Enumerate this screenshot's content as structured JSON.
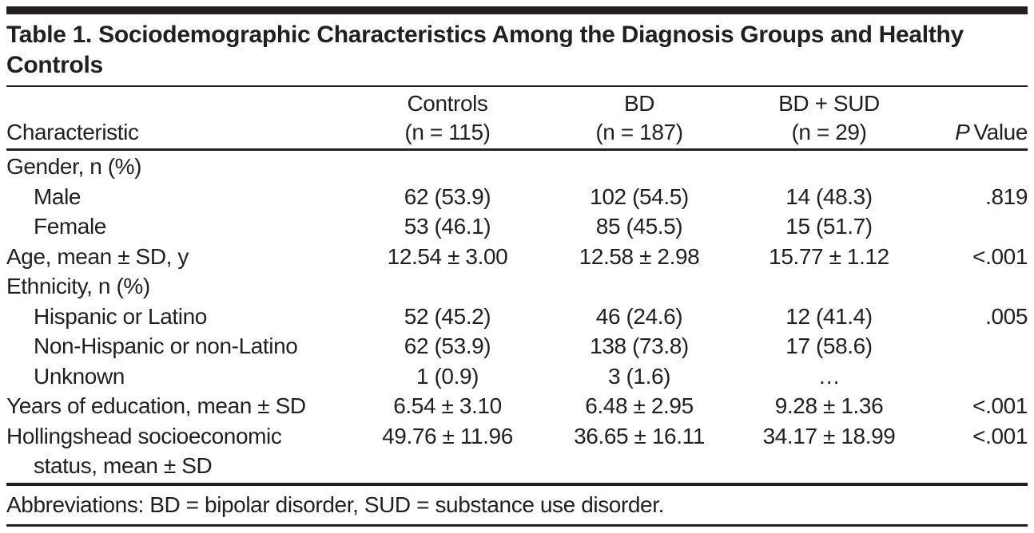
{
  "page": {
    "title": "Table 1. Sociodemographic Characteristics Among the Diagnosis Groups and Healthy Controls",
    "footnote": "Abbreviations: BD = bipolar disorder, SUD = substance use disorder."
  },
  "header": {
    "characteristic": "Characteristic",
    "groups": [
      {
        "name": "Controls",
        "n": "(n = 115)"
      },
      {
        "name": "BD",
        "n": "(n = 187)"
      },
      {
        "name": "BD + SUD",
        "n": "(n = 29)"
      }
    ],
    "p_italic": "P",
    "p_rest": "Value"
  },
  "rows": [
    {
      "label": "Gender, n (%)",
      "controls": "",
      "bd": "",
      "bdsud": "",
      "p": ""
    },
    {
      "label": "Male",
      "controls": "62 (53.9)",
      "bd": "102 (54.5)",
      "bdsud": "14 (48.3)",
      "p": ".819"
    },
    {
      "label": "Female",
      "controls": "53 (46.1)",
      "bd": "85 (45.5)",
      "bdsud": "15 (51.7)",
      "p": ""
    },
    {
      "label": "Age, mean ± SD, y",
      "controls": "12.54 ± 3.00",
      "bd": "12.58 ± 2.98",
      "bdsud": "15.77 ± 1.12",
      "p": "<.001"
    },
    {
      "label": "Ethnicity, n (%)",
      "controls": "",
      "bd": "",
      "bdsud": "",
      "p": ""
    },
    {
      "label": "Hispanic or Latino",
      "controls": "52 (45.2)",
      "bd": "46 (24.6)",
      "bdsud": "12 (41.4)",
      "p": ".005"
    },
    {
      "label": "Non-Hispanic or non-Latino",
      "controls": "62 (53.9)",
      "bd": "138 (73.8)",
      "bdsud": "17 (58.6)",
      "p": ""
    },
    {
      "label": "Unknown",
      "controls": "1 (0.9)",
      "bd": "3 (1.6)",
      "bdsud": "…",
      "p": ""
    },
    {
      "label": "Years of education, mean ± SD",
      "controls": "6.54 ± 3.10",
      "bd": "6.48 ± 2.95",
      "bdsud": "9.28 ± 1.36",
      "p": "<.001"
    },
    {
      "label": "Hollingshead socioeconomic",
      "label2": "status, mean ± SD",
      "controls": "49.76 ± 11.96",
      "bd": "36.65 ± 16.11",
      "bdsud": "34.17 ± 18.99",
      "p": "<.001"
    }
  ],
  "colors": {
    "ink": "#231f20",
    "background": "#ffffff"
  }
}
